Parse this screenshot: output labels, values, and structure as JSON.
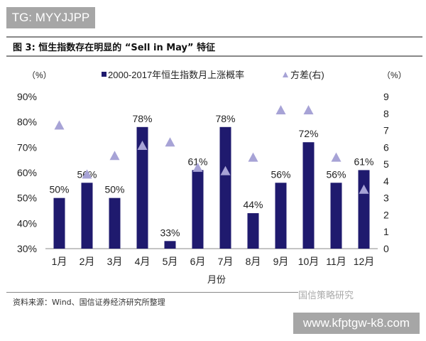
{
  "watermark_top": "TG: MYYJJPP",
  "figure_title": "图 3: 恒生指数存在明显的 “Sell in May” 特征",
  "source": "资料来源：Wind、国信证券经济研究所整理",
  "watermark_logo": "国信策略研究",
  "watermark_bottom": "www.kfptgw-k8.com",
  "colors": {
    "bar": "#1f1a6e",
    "marker": "#a7a3d6"
  },
  "chart_data": {
    "type": "bar",
    "categories": [
      "1月",
      "2月",
      "3月",
      "4月",
      "5月",
      "6月",
      "7月",
      "8月",
      "9月",
      "10月",
      "11月",
      "12月"
    ],
    "series": [
      {
        "name": "2000-2017年恒生指数月上涨概率",
        "axis": "left",
        "type": "bar",
        "values": [
          50,
          56,
          50,
          78,
          33,
          61,
          78,
          44,
          56,
          72,
          56,
          61
        ],
        "labels": [
          "50%",
          "56%",
          "50%",
          "78%",
          "33%",
          "61%",
          "78%",
          "44%",
          "56%",
          "72%",
          "56%",
          "61%"
        ]
      },
      {
        "name": "方差(右)",
        "axis": "right",
        "type": "scatter",
        "marker": "triangle",
        "values": [
          7.3,
          4.4,
          5.5,
          6.1,
          6.3,
          4.8,
          4.6,
          5.4,
          8.2,
          8.2,
          5.4,
          3.5
        ]
      }
    ],
    "xlabel": "月份",
    "ylabel_left": "（%）",
    "ylabel_right": "（%）",
    "ylim_left": [
      30,
      90
    ],
    "yticks_left": [
      "30%",
      "40%",
      "50%",
      "60%",
      "70%",
      "80%",
      "90%"
    ],
    "ylim_right": [
      0,
      9
    ],
    "yticks_right": [
      "0",
      "1",
      "2",
      "3",
      "4",
      "5",
      "6",
      "7",
      "8",
      "9"
    ],
    "legend_placement": "top",
    "grid": false
  }
}
